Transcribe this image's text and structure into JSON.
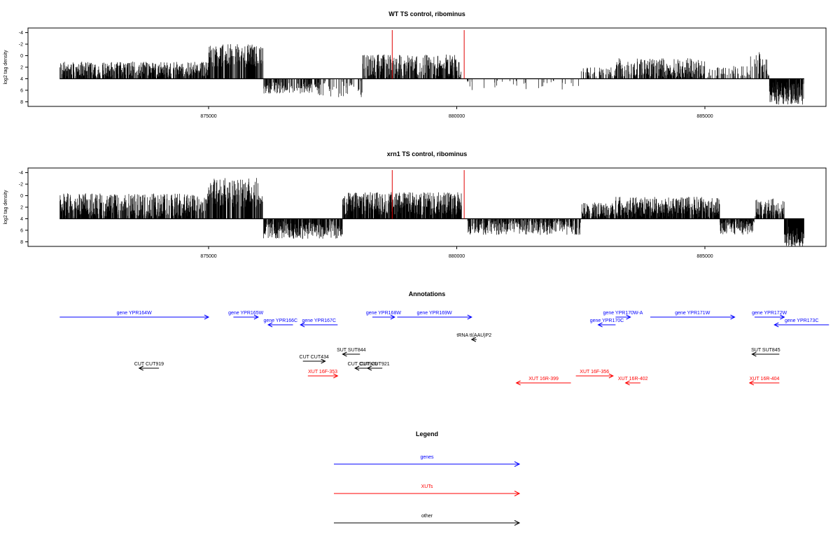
{
  "panels": [
    {
      "title": "WT TS control, ribominus",
      "ylabel": "log2 tag density",
      "yticks": [
        "8",
        "6",
        "4",
        "2",
        "0",
        "-2",
        "-4"
      ],
      "xticks": [
        "875000",
        "880000",
        "885000"
      ]
    },
    {
      "title": "xrn1 TS control, ribominus",
      "ylabel": "log2 tag density",
      "yticks": [
        "8",
        "6",
        "4",
        "2",
        "0",
        "-2",
        "-4"
      ],
      "xticks": [
        "875000",
        "880000",
        "885000"
      ]
    }
  ],
  "annotations_title": "Annotations",
  "legend": {
    "title": "Legend",
    "items": [
      {
        "label": "genes",
        "color": "#0000ff"
      },
      {
        "label": "XUTs",
        "color": "#ff0000"
      },
      {
        "label": "other",
        "color": "#000000"
      }
    ]
  },
  "chart_data": {
    "type": "bar",
    "x_range": [
      872000,
      887000
    ],
    "y_range": [
      -4.8,
      8.8
    ],
    "yticks": [
      -4,
      -2,
      0,
      2,
      4,
      6,
      8
    ],
    "xticks": [
      875000,
      880000,
      885000
    ],
    "red_markers": [
      878700,
      880150
    ],
    "series": [
      {
        "name": "WT TS control, ribominus",
        "segments": [
          {
            "start": 872000,
            "end": 875000,
            "mean": 1.6,
            "amp": 1.4
          },
          {
            "start": 875000,
            "end": 876100,
            "mean": 4.0,
            "amp": 2.0
          },
          {
            "start": 876100,
            "end": 877200,
            "mean": -1.6,
            "amp": 1.0,
            "density": 0.4
          },
          {
            "start": 877200,
            "end": 878100,
            "mean": -1.8,
            "amp": 1.4,
            "density": 0.15
          },
          {
            "start": 878100,
            "end": 880100,
            "mean": 2.2,
            "amp": 2.0,
            "density": 0.55
          },
          {
            "start": 880200,
            "end": 882500,
            "mean": -0.8,
            "amp": 1.2,
            "density": 0.06
          },
          {
            "start": 882500,
            "end": 883200,
            "mean": 1.0,
            "amp": 1.0,
            "density": 0.2
          },
          {
            "start": 883200,
            "end": 885000,
            "mean": 1.8,
            "amp": 1.8,
            "density": 0.45
          },
          {
            "start": 885000,
            "end": 885900,
            "mean": 1.0,
            "amp": 1.2,
            "density": 0.15
          },
          {
            "start": 885900,
            "end": 886300,
            "mean": 2.0,
            "amp": 2.6,
            "density": 0.35
          },
          {
            "start": 886300,
            "end": 887000,
            "mean": -2.5,
            "amp": 2.0,
            "density": 0.8
          }
        ]
      },
      {
        "name": "xrn1 TS control, ribominus",
        "segments": [
          {
            "start": 872000,
            "end": 875000,
            "mean": 2.4,
            "amp": 2.0
          },
          {
            "start": 875000,
            "end": 876100,
            "mean": 4.5,
            "amp": 2.6
          },
          {
            "start": 876100,
            "end": 877700,
            "mean": -1.9,
            "amp": 1.6,
            "density": 0.6
          },
          {
            "start": 877700,
            "end": 880100,
            "mean": 2.6,
            "amp": 2.0,
            "density": 0.7
          },
          {
            "start": 880200,
            "end": 882500,
            "mean": -1.4,
            "amp": 1.4,
            "density": 0.5
          },
          {
            "start": 882500,
            "end": 883200,
            "mean": 1.4,
            "amp": 1.4,
            "density": 0.5
          },
          {
            "start": 883200,
            "end": 885300,
            "mean": 2.0,
            "amp": 1.8,
            "density": 0.7
          },
          {
            "start": 885300,
            "end": 886000,
            "mean": -1.2,
            "amp": 1.6,
            "density": 0.6
          },
          {
            "start": 886000,
            "end": 886600,
            "mean": 1.6,
            "amp": 2.0,
            "density": 0.5
          },
          {
            "start": 886600,
            "end": 887000,
            "mean": -3.0,
            "amp": 2.0,
            "density": 0.9
          }
        ]
      }
    ],
    "annotations": [
      {
        "label": "gene YPR164W",
        "kind": "gene",
        "start": 872000,
        "end": 875000,
        "strand": "+",
        "row": 0
      },
      {
        "label": "gene YPR165W",
        "kind": "gene",
        "start": 875500,
        "end": 876000,
        "strand": "+",
        "row": 0
      },
      {
        "label": "gene YPR166C",
        "kind": "gene",
        "start": 876700,
        "end": 876200,
        "strand": "-",
        "row": 1
      },
      {
        "label": "gene YPR167C",
        "kind": "gene",
        "start": 877600,
        "end": 876850,
        "strand": "-",
        "row": 1
      },
      {
        "label": "gene YPR168W",
        "kind": "gene",
        "start": 878300,
        "end": 878750,
        "strand": "+",
        "row": 0
      },
      {
        "label": "gene YPR169W",
        "kind": "gene",
        "start": 878800,
        "end": 880300,
        "strand": "+",
        "row": 0
      },
      {
        "label": "gene YPR170W-A",
        "kind": "gene",
        "start": 883200,
        "end": 883500,
        "strand": "+",
        "row": 0
      },
      {
        "label": "gene YPR170C",
        "kind": "gene",
        "start": 883200,
        "end": 882850,
        "strand": "-",
        "row": 1
      },
      {
        "label": "gene YPR171W",
        "kind": "gene",
        "start": 883900,
        "end": 885600,
        "strand": "+",
        "row": 0
      },
      {
        "label": "gene YPR172W",
        "kind": "gene",
        "start": 886000,
        "end": 886600,
        "strand": "+",
        "row": 0
      },
      {
        "label": "gene YPR173C",
        "kind": "gene",
        "start": 887500,
        "end": 886400,
        "strand": "-",
        "row": 1
      },
      {
        "label": "tRNA tI(AAU)P2",
        "kind": "other",
        "start": 880400,
        "end": 880300,
        "strand": "-",
        "row": 2
      },
      {
        "label": "SUT SUT844",
        "kind": "other",
        "start": 878050,
        "end": 877700,
        "strand": "-",
        "row": 3
      },
      {
        "label": "SUT SUT845",
        "kind": "other",
        "start": 886500,
        "end": 885950,
        "strand": "-",
        "row": 3
      },
      {
        "label": "CUT CUT434",
        "kind": "other",
        "start": 876900,
        "end": 877350,
        "strand": "+",
        "row": 4
      },
      {
        "label": "CUT CUT919",
        "kind": "other",
        "start": 874000,
        "end": 873600,
        "strand": "-",
        "row": 5
      },
      {
        "label": "CUT CUT920",
        "kind": "other",
        "start": 878250,
        "end": 877950,
        "strand": "-",
        "row": 5
      },
      {
        "label": "CUT CUT921",
        "kind": "other",
        "start": 878500,
        "end": 878200,
        "strand": "-",
        "row": 5
      },
      {
        "label": "XUT 16F-353",
        "kind": "XUT",
        "start": 877000,
        "end": 877600,
        "strand": "+",
        "row": 6
      },
      {
        "label": "XUT 16F-356",
        "kind": "XUT",
        "start": 882400,
        "end": 883150,
        "strand": "+",
        "row": 6
      },
      {
        "label": "XUT 16R-399",
        "kind": "XUT",
        "start": 882300,
        "end": 881200,
        "strand": "-",
        "row": 7
      },
      {
        "label": "XUT 16R-402",
        "kind": "XUT",
        "start": 883700,
        "end": 883400,
        "strand": "-",
        "row": 7
      },
      {
        "label": "XUT 16R-404",
        "kind": "XUT",
        "start": 886500,
        "end": 885900,
        "strand": "-",
        "row": 7
      }
    ]
  }
}
